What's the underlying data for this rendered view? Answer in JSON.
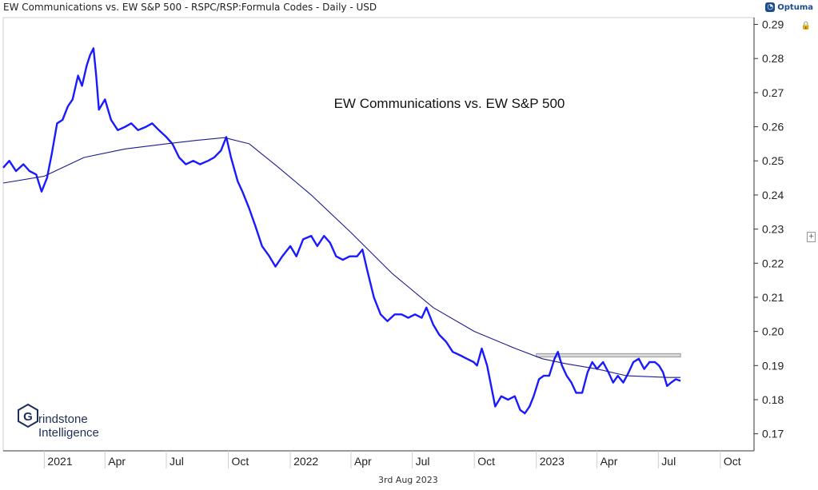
{
  "header": {
    "title": "EW Communications vs. EW S&P 500 - RSPC/RSP:Formula Codes - Daily - USD",
    "brand": "Optuma",
    "date": "3rd Aug 2023"
  },
  "watermark": {
    "line1": "rindstone",
    "line2": "Intelligence"
  },
  "colors": {
    "price": "#1a1aff",
    "ma": "#1c1c8f",
    "zone_fill": "#d9d9d9",
    "axis": "#333333"
  },
  "icons": [
    "lock-icon",
    "expand-plus-icon",
    "optuma-logo-icon",
    "grindstone-logo-icon"
  ],
  "chart_data": {
    "type": "line",
    "title": "EW Communications vs. EW S&P 500",
    "xlabel": "",
    "ylabel": "",
    "ylim": [
      0.165,
      0.292
    ],
    "yticks": [
      "0.17",
      "0.18",
      "0.19",
      "0.20",
      "0.21",
      "0.22",
      "0.23",
      "0.24",
      "0.25",
      "0.26",
      "0.27",
      "0.28",
      "0.29"
    ],
    "xticks": [
      {
        "label": "2021",
        "date": "2021-01-01"
      },
      {
        "label": "Apr",
        "date": "2021-04-01"
      },
      {
        "label": "Jul",
        "date": "2021-07-01"
      },
      {
        "label": "Oct",
        "date": "2021-10-01"
      },
      {
        "label": "2022",
        "date": "2022-01-01"
      },
      {
        "label": "Apr",
        "date": "2022-04-01"
      },
      {
        "label": "Jul",
        "date": "2022-07-01"
      },
      {
        "label": "Oct",
        "date": "2022-10-01"
      },
      {
        "label": "2023",
        "date": "2023-01-01"
      },
      {
        "label": "Apr",
        "date": "2023-04-01"
      },
      {
        "label": "Jul",
        "date": "2023-07-01"
      },
      {
        "label": "Oct",
        "date": "2023-10-01"
      }
    ],
    "xlim": [
      "2020-11-01",
      "2023-11-20"
    ],
    "grid": false,
    "series": [
      {
        "name": "",
        "role": "price",
        "points": [
          [
            "2020-11-01",
            0.248
          ],
          [
            "2020-11-10",
            0.25
          ],
          [
            "2020-11-20",
            0.247
          ],
          [
            "2020-12-01",
            0.249
          ],
          [
            "2020-12-10",
            0.247
          ],
          [
            "2020-12-20",
            0.246
          ],
          [
            "2020-12-28",
            0.241
          ],
          [
            "2021-01-05",
            0.245
          ],
          [
            "2021-01-12",
            0.252
          ],
          [
            "2021-01-20",
            0.261
          ],
          [
            "2021-01-28",
            0.262
          ],
          [
            "2021-02-05",
            0.266
          ],
          [
            "2021-02-12",
            0.268
          ],
          [
            "2021-02-20",
            0.275
          ],
          [
            "2021-02-26",
            0.272
          ],
          [
            "2021-03-05",
            0.278
          ],
          [
            "2021-03-10",
            0.281
          ],
          [
            "2021-03-15",
            0.283
          ],
          [
            "2021-03-19",
            0.275
          ],
          [
            "2021-03-23",
            0.265
          ],
          [
            "2021-04-01",
            0.268
          ],
          [
            "2021-04-10",
            0.262
          ],
          [
            "2021-04-20",
            0.259
          ],
          [
            "2021-05-01",
            0.26
          ],
          [
            "2021-05-10",
            0.261
          ],
          [
            "2021-05-20",
            0.259
          ],
          [
            "2021-06-01",
            0.26
          ],
          [
            "2021-06-10",
            0.261
          ],
          [
            "2021-06-20",
            0.259
          ],
          [
            "2021-07-01",
            0.257
          ],
          [
            "2021-07-10",
            0.255
          ],
          [
            "2021-07-20",
            0.251
          ],
          [
            "2021-07-30",
            0.249
          ],
          [
            "2021-08-10",
            0.25
          ],
          [
            "2021-08-20",
            0.249
          ],
          [
            "2021-09-01",
            0.25
          ],
          [
            "2021-09-10",
            0.251
          ],
          [
            "2021-09-20",
            0.253
          ],
          [
            "2021-09-28",
            0.257
          ],
          [
            "2021-10-05",
            0.251
          ],
          [
            "2021-10-15",
            0.244
          ],
          [
            "2021-10-22",
            0.241
          ],
          [
            "2021-11-01",
            0.236
          ],
          [
            "2021-11-10",
            0.231
          ],
          [
            "2021-11-20",
            0.225
          ],
          [
            "2021-12-01",
            0.222
          ],
          [
            "2021-12-10",
            0.219
          ],
          [
            "2021-12-20",
            0.222
          ],
          [
            "2022-01-01",
            0.225
          ],
          [
            "2022-01-10",
            0.222
          ],
          [
            "2022-01-20",
            0.227
          ],
          [
            "2022-02-01",
            0.228
          ],
          [
            "2022-02-10",
            0.225
          ],
          [
            "2022-02-20",
            0.228
          ],
          [
            "2022-03-01",
            0.226
          ],
          [
            "2022-03-10",
            0.222
          ],
          [
            "2022-03-20",
            0.221
          ],
          [
            "2022-03-30",
            0.222
          ],
          [
            "2022-04-10",
            0.222
          ],
          [
            "2022-04-18",
            0.224
          ],
          [
            "2022-04-25",
            0.218
          ],
          [
            "2022-05-05",
            0.21
          ],
          [
            "2022-05-15",
            0.205
          ],
          [
            "2022-05-25",
            0.203
          ],
          [
            "2022-06-05",
            0.205
          ],
          [
            "2022-06-15",
            0.205
          ],
          [
            "2022-06-25",
            0.204
          ],
          [
            "2022-07-05",
            0.205
          ],
          [
            "2022-07-15",
            0.204
          ],
          [
            "2022-07-22",
            0.207
          ],
          [
            "2022-08-01",
            0.202
          ],
          [
            "2022-08-10",
            0.199
          ],
          [
            "2022-08-20",
            0.197
          ],
          [
            "2022-08-30",
            0.194
          ],
          [
            "2022-09-10",
            0.193
          ],
          [
            "2022-09-20",
            0.192
          ],
          [
            "2022-09-30",
            0.191
          ],
          [
            "2022-10-05",
            0.19
          ],
          [
            "2022-10-12",
            0.195
          ],
          [
            "2022-10-20",
            0.19
          ],
          [
            "2022-10-25",
            0.185
          ],
          [
            "2022-11-01",
            0.178
          ],
          [
            "2022-11-10",
            0.181
          ],
          [
            "2022-11-20",
            0.18
          ],
          [
            "2022-11-30",
            0.181
          ],
          [
            "2022-12-08",
            0.177
          ],
          [
            "2022-12-15",
            0.176
          ],
          [
            "2022-12-22",
            0.178
          ],
          [
            "2022-12-28",
            0.181
          ],
          [
            "2023-01-05",
            0.186
          ],
          [
            "2023-01-12",
            0.187
          ],
          [
            "2023-01-20",
            0.187
          ],
          [
            "2023-01-28",
            0.192
          ],
          [
            "2023-02-02",
            0.194
          ],
          [
            "2023-02-08",
            0.19
          ],
          [
            "2023-02-15",
            0.187
          ],
          [
            "2023-02-22",
            0.185
          ],
          [
            "2023-03-01",
            0.182
          ],
          [
            "2023-03-10",
            0.182
          ],
          [
            "2023-03-18",
            0.188
          ],
          [
            "2023-03-25",
            0.191
          ],
          [
            "2023-04-01",
            0.189
          ],
          [
            "2023-04-10",
            0.191
          ],
          [
            "2023-04-18",
            0.188
          ],
          [
            "2023-04-25",
            0.185
          ],
          [
            "2023-05-02",
            0.187
          ],
          [
            "2023-05-10",
            0.185
          ],
          [
            "2023-05-18",
            0.188
          ],
          [
            "2023-05-25",
            0.191
          ],
          [
            "2023-06-02",
            0.192
          ],
          [
            "2023-06-10",
            0.189
          ],
          [
            "2023-06-18",
            0.191
          ],
          [
            "2023-06-26",
            0.191
          ],
          [
            "2023-07-02",
            0.19
          ],
          [
            "2023-07-08",
            0.188
          ],
          [
            "2023-07-14",
            0.184
          ],
          [
            "2023-07-20",
            0.185
          ],
          [
            "2023-07-27",
            0.186
          ],
          [
            "2023-08-03",
            0.1855
          ]
        ]
      },
      {
        "name": "",
        "role": "moving-average",
        "points": [
          [
            "2020-11-01",
            0.2435
          ],
          [
            "2021-01-01",
            0.2455
          ],
          [
            "2021-03-01",
            0.251
          ],
          [
            "2021-05-01",
            0.2535
          ],
          [
            "2021-07-01",
            0.255
          ],
          [
            "2021-08-15",
            0.256
          ],
          [
            "2021-09-25",
            0.2568
          ],
          [
            "2021-11-01",
            0.255
          ],
          [
            "2021-12-15",
            0.248
          ],
          [
            "2022-02-01",
            0.24
          ],
          [
            "2022-04-01",
            0.229
          ],
          [
            "2022-06-01",
            0.217
          ],
          [
            "2022-08-01",
            0.207
          ],
          [
            "2022-10-01",
            0.2
          ],
          [
            "2022-12-01",
            0.195
          ],
          [
            "2023-01-10",
            0.192
          ],
          [
            "2023-02-15",
            0.1905
          ],
          [
            "2023-04-01",
            0.189
          ],
          [
            "2023-05-15",
            0.187
          ],
          [
            "2023-07-15",
            0.1865
          ],
          [
            "2023-08-03",
            0.1865
          ]
        ]
      }
    ],
    "zones": [
      {
        "name": "",
        "x": [
          "2023-01-01",
          "2023-08-03"
        ],
        "y": [
          0.1925,
          0.1935
        ]
      }
    ]
  }
}
